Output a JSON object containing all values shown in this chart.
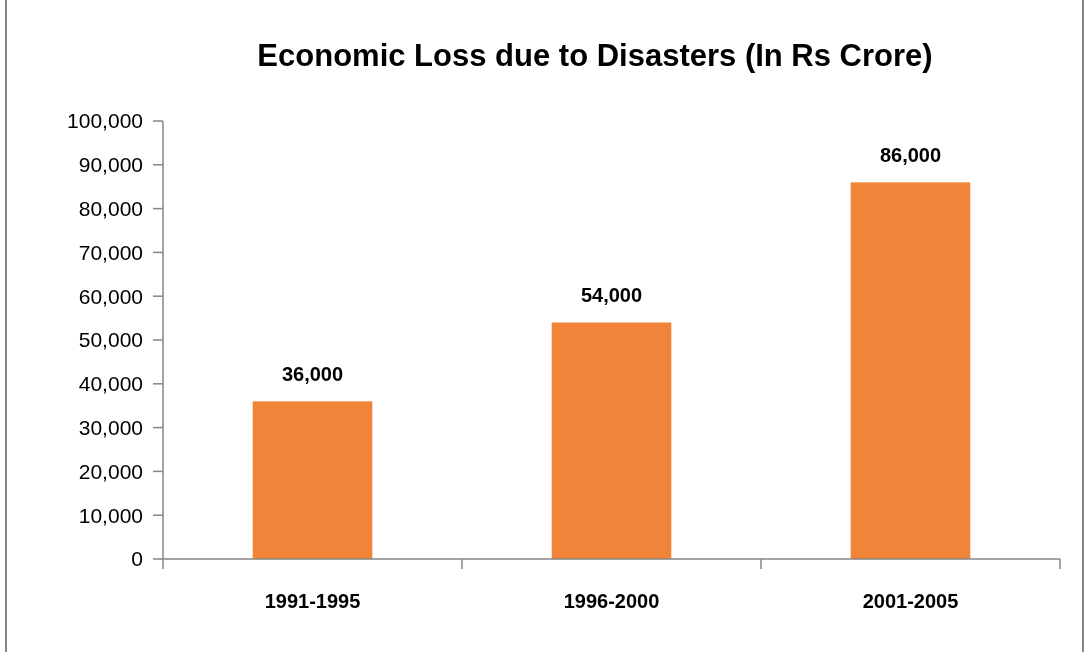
{
  "chart_data": {
    "type": "bar",
    "title": "Economic Loss due to Disasters (In Rs Crore)",
    "categories": [
      "1991-1995",
      "1996-2000",
      "2001-2005"
    ],
    "values": [
      36000,
      54000,
      86000
    ],
    "color": "#f2843a",
    "ylim": [
      0,
      100000
    ],
    "yticks": [
      {
        "value": 0,
        "label": "0"
      },
      {
        "value": 10000,
        "label": "10,000"
      },
      {
        "value": 20000,
        "label": "20,000"
      },
      {
        "value": 30000,
        "label": "30,000"
      },
      {
        "value": 40000,
        "label": "40,000"
      },
      {
        "value": 50000,
        "label": "50,000"
      },
      {
        "value": 60000,
        "label": "60,000"
      },
      {
        "value": 70000,
        "label": "70,000"
      },
      {
        "value": 80000,
        "label": "80,000"
      },
      {
        "value": 90000,
        "label": "90,000"
      },
      {
        "value": 100000,
        "label": "100,000"
      }
    ],
    "value_labels": [
      "36,000",
      "54,000",
      "86,000"
    ]
  }
}
